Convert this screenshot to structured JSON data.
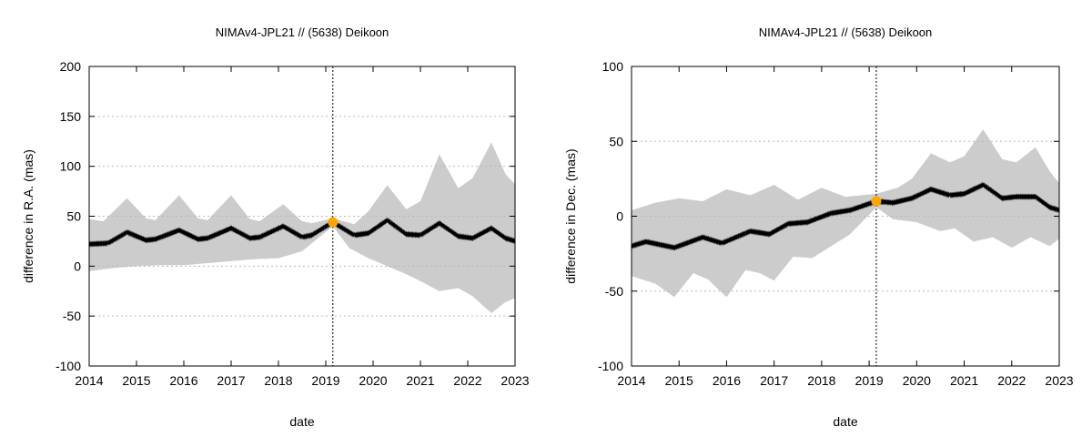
{
  "chart_data": [
    {
      "type": "line",
      "title": "NIMAv4-JPL21 // (5638) Deikoon",
      "xlabel": "date",
      "ylabel": "difference in R.A. (mas)",
      "xlim": [
        2014,
        2023
      ],
      "ylim": [
        -100,
        200
      ],
      "xticks": [
        "2014",
        "2015",
        "2016",
        "2017",
        "2018",
        "2019",
        "2020",
        "2021",
        "2022",
        "2023"
      ],
      "yticks": [
        "-100",
        "-50",
        "0",
        "50",
        "100",
        "150",
        "200"
      ],
      "grid": "dotted-horizontal",
      "marker": {
        "x": 2019.15,
        "y": 44
      },
      "vline_x": 2019.15,
      "series": [
        {
          "role": "difference",
          "x": [
            2014.0,
            2014.4,
            2014.8,
            2015.2,
            2015.4,
            2015.9,
            2016.3,
            2016.5,
            2017.0,
            2017.4,
            2017.6,
            2018.1,
            2018.5,
            2018.7,
            2019.15,
            2019.6,
            2019.9,
            2020.3,
            2020.7,
            2021.0,
            2021.4,
            2021.8,
            2022.1,
            2022.5,
            2022.8,
            2023.0
          ],
          "y": [
            22,
            23,
            34,
            26,
            27,
            36,
            27,
            28,
            38,
            28,
            29,
            40,
            29,
            31,
            44,
            31,
            33,
            46,
            32,
            31,
            43,
            30,
            28,
            38,
            28,
            25
          ]
        },
        {
          "role": "uncertainty-upper",
          "x": [
            2014.0,
            2014.3,
            2014.8,
            2015.2,
            2015.4,
            2015.9,
            2016.3,
            2016.5,
            2017.0,
            2017.4,
            2017.6,
            2018.1,
            2018.5,
            2018.7,
            2019.15,
            2019.6,
            2019.9,
            2020.3,
            2020.7,
            2021.0,
            2021.4,
            2021.8,
            2022.1,
            2022.5,
            2022.8,
            2023.0
          ],
          "y": [
            47,
            45,
            68,
            48,
            46,
            71,
            48,
            46,
            71,
            47,
            45,
            62,
            45,
            43,
            48,
            42,
            55,
            81,
            57,
            65,
            112,
            78,
            88,
            124,
            92,
            82
          ]
        },
        {
          "role": "uncertainty-lower",
          "x": [
            2014.0,
            2014.5,
            2015.0,
            2015.5,
            2016.0,
            2016.5,
            2017.0,
            2017.5,
            2018.0,
            2018.5,
            2019.15,
            2019.5,
            2019.9,
            2020.3,
            2020.7,
            2021.0,
            2021.4,
            2021.8,
            2022.1,
            2022.5,
            2022.8,
            2023.0
          ],
          "y": [
            -5,
            -2,
            0,
            1,
            1,
            3,
            5,
            7,
            8,
            15,
            40,
            18,
            8,
            0,
            -8,
            -15,
            -25,
            -22,
            -30,
            -47,
            -36,
            -32
          ]
        }
      ]
    },
    {
      "type": "line",
      "title": "NIMAv4-JPL21 // (5638) Deikoon",
      "xlabel": "date",
      "ylabel": "difference in Dec. (mas)",
      "xlim": [
        2014,
        2023
      ],
      "ylim": [
        -100,
        100
      ],
      "xticks": [
        "2014",
        "2015",
        "2016",
        "2017",
        "2018",
        "2019",
        "2020",
        "2021",
        "2022",
        "2023"
      ],
      "yticks": [
        "-100",
        "-50",
        "0",
        "50",
        "100"
      ],
      "grid": "dotted-horizontal",
      "marker": {
        "x": 2019.15,
        "y": 10
      },
      "vline_x": 2019.15,
      "series": [
        {
          "role": "difference",
          "x": [
            2014.0,
            2014.3,
            2014.9,
            2015.5,
            2015.9,
            2016.5,
            2016.9,
            2017.3,
            2017.7,
            2018.2,
            2018.6,
            2019.15,
            2019.5,
            2019.9,
            2020.3,
            2020.7,
            2021.0,
            2021.4,
            2021.8,
            2022.1,
            2022.5,
            2022.8,
            2023.0
          ],
          "y": [
            -20,
            -17,
            -21,
            -14,
            -18,
            -10,
            -12,
            -5,
            -4,
            2,
            4,
            10,
            9,
            12,
            18,
            14,
            15,
            21,
            12,
            13,
            13,
            6,
            4
          ]
        },
        {
          "role": "uncertainty-upper",
          "x": [
            2014.0,
            2014.5,
            2015.0,
            2015.5,
            2016.0,
            2016.5,
            2017.0,
            2017.5,
            2018.0,
            2018.5,
            2019.15,
            2019.6,
            2019.9,
            2020.3,
            2020.7,
            2021.0,
            2021.4,
            2021.8,
            2022.1,
            2022.5,
            2022.8,
            2023.0
          ],
          "y": [
            4,
            9,
            12,
            10,
            18,
            14,
            21,
            11,
            19,
            13,
            15,
            19,
            25,
            42,
            36,
            40,
            58,
            38,
            36,
            46,
            30,
            22
          ]
        },
        {
          "role": "uncertainty-lower",
          "x": [
            2014.0,
            2014.5,
            2014.9,
            2015.3,
            2015.6,
            2016.0,
            2016.4,
            2016.7,
            2017.0,
            2017.4,
            2017.8,
            2018.2,
            2018.6,
            2019.15,
            2019.5,
            2020.0,
            2020.5,
            2020.8,
            2021.2,
            2021.6,
            2022.0,
            2022.4,
            2022.8,
            2023.0
          ],
          "y": [
            -40,
            -45,
            -54,
            -38,
            -42,
            -54,
            -36,
            -38,
            -43,
            -27,
            -28,
            -20,
            -12,
            6,
            -2,
            -4,
            -10,
            -8,
            -17,
            -14,
            -21,
            -14,
            -20,
            -15
          ]
        }
      ]
    }
  ],
  "colors": {
    "band": "#cccccc",
    "line": "#000000",
    "marker": "#ffa500",
    "grid": "#b8b8b8"
  }
}
